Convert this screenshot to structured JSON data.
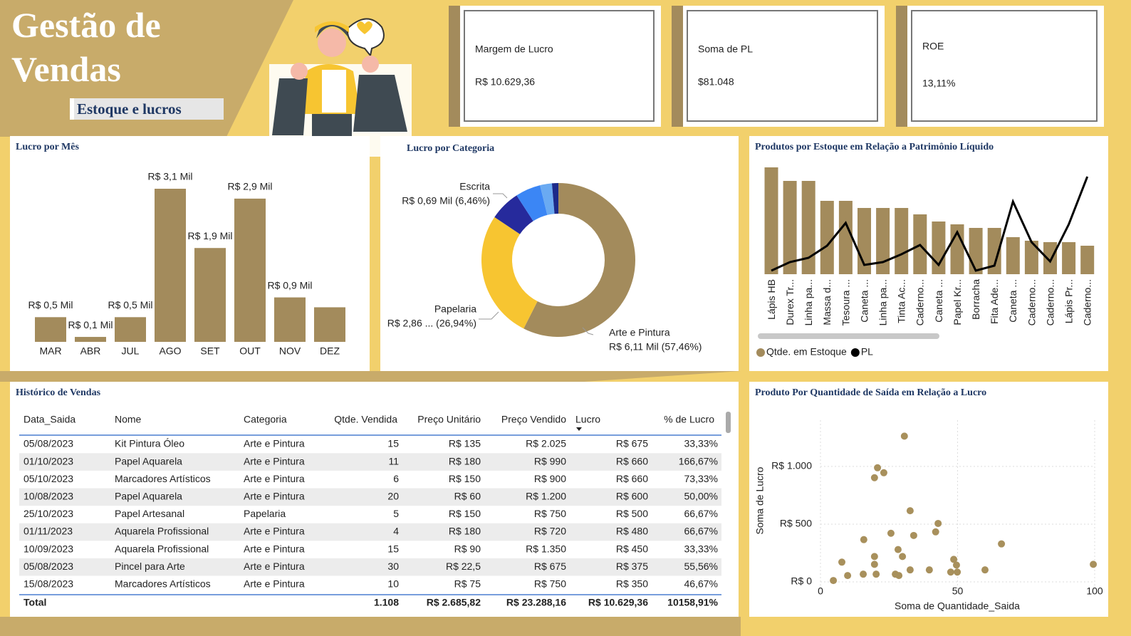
{
  "header": {
    "title": "Gestão de Vendas",
    "subtitle": "Estoque e lucros"
  },
  "kpis": [
    {
      "label": "Margem de Lucro",
      "value": "R$ 10.629,36"
    },
    {
      "label": "Soma de PL",
      "value": "$81.048"
    },
    {
      "label": "ROE",
      "value": "13,11%"
    }
  ],
  "chart_data": [
    {
      "type": "bar",
      "title": "Lucro por Mês",
      "categories": [
        "MAR",
        "ABR",
        "JUL",
        "AGO",
        "SET",
        "OUT",
        "NOV",
        "DEZ"
      ],
      "values": [
        0.5,
        0.1,
        0.5,
        3.1,
        1.9,
        2.9,
        0.9,
        0.7
      ],
      "value_labels": [
        "R$ 0,5 Mil",
        "R$ 0,1 Mil",
        "R$ 0,5 Mil",
        "R$ 3,1 Mil",
        "R$ 1,9 Mil",
        "R$ 2,9 Mil",
        "R$ 0,9 Mil",
        null
      ],
      "color": "#a38b5c"
    },
    {
      "type": "donut",
      "title": "Lucro por Categoria",
      "categories": [
        "Arte e Pintura",
        "Papelaria",
        "Escrita",
        null,
        null,
        null
      ],
      "values": [
        57.46,
        26.94,
        6.46,
        5.3,
        2.5,
        1.34
      ],
      "value_labels": [
        "R$ 6,11 Mil (57,46%)",
        "R$ 2,86 ... (26,94%)",
        "R$ 0,69 Mil (6,46%)",
        null,
        null,
        null
      ],
      "colors": [
        "#a38b5c",
        "#f7c531",
        "#262a9c",
        "#3b86f5",
        "#6aaaf2",
        "#1c2a8a"
      ]
    },
    {
      "type": "combo",
      "title": "Produtos por Estoque em Relação a Patrimônio Líquido",
      "categories": [
        "Lápis HB",
        "Durex Tr...",
        "Linha pa...",
        "Massa d...",
        "Tesoura ...",
        "Caneta ...",
        "Linha pa...",
        "Tinta Ac...",
        "Caderno...",
        "Caneta ...",
        "Papel Kr...",
        "Borracha",
        "Fita Ade...",
        "Caneta ...",
        "Caderno...",
        "Caderno...",
        "Lápis Pr...",
        "Caderno..."
      ],
      "series": [
        {
          "name": "Qtde. em Estoque",
          "color": "#a38b5c",
          "values": [
            150,
            131,
            131,
            103,
            103,
            93,
            93,
            93,
            84,
            74,
            70,
            65,
            65,
            52,
            47,
            45,
            45,
            40
          ]
        },
        {
          "name": "PL",
          "color": "#000000",
          "axis": "y2",
          "values": [
            5,
            17,
            23,
            40,
            72,
            13,
            17,
            28,
            41,
            13,
            59,
            5,
            12,
            102,
            45,
            18,
            70,
            137
          ]
        }
      ]
    },
    {
      "type": "scatter",
      "title": "Produto Por Quantidade de Saída em Relação a Lucro",
      "x_label": "Soma de Quantidade_Saida",
      "y_label": "Soma de Lucro",
      "color": "#a8905c",
      "x": [
        30.6,
        20.8,
        23.1,
        19.7,
        32.7,
        42.9,
        34,
        25.7,
        42,
        15.8,
        28.3,
        66,
        7.8,
        19.7,
        19.7,
        29.9,
        48.6,
        49.6,
        99.5,
        15.6,
        9.9,
        4.7,
        20.3,
        27.3,
        32.7,
        39.7,
        47.5,
        49.9,
        60,
        28.6
      ],
      "values": [
        1262,
        988,
        945,
        902,
        616,
        506,
        402,
        421,
        433,
        366,
        280,
        329,
        171,
        220,
        152,
        220,
        195,
        146,
        152,
        67,
        55,
        12,
        67,
        67,
        104,
        104,
        85,
        85,
        104,
        55
      ],
      "xlim": [
        0,
        100
      ],
      "xticks": [
        0,
        50,
        100
      ],
      "ylim": [
        -80,
        1400
      ],
      "yticks": [
        {
          "value": 0,
          "label": "R$ 0"
        },
        {
          "value": 500,
          "label": "R$ 500"
        },
        {
          "value": 1000,
          "label": "R$ 1.000"
        }
      ],
      "grid": true
    }
  ],
  "table": {
    "title": "Histórico de Vendas",
    "columns": [
      "Data_Saida",
      "Nome",
      "Categoria",
      "Qtde. Vendida",
      "Preço Unitário",
      "Preço Vendido",
      "Lucro",
      "% de Lucro"
    ],
    "rows": [
      [
        "05/08/2023",
        "Kit Pintura Óleo",
        "Arte e Pintura",
        "15",
        "R$ 135",
        "R$ 2.025",
        "R$ 675",
        "33,33%"
      ],
      [
        "01/10/2023",
        "Papel Aquarela",
        "Arte e Pintura",
        "11",
        "R$ 180",
        "R$ 990",
        "R$ 660",
        "166,67%"
      ],
      [
        "05/10/2023",
        "Marcadores Artísticos",
        "Arte e Pintura",
        "6",
        "R$ 150",
        "R$ 900",
        "R$ 660",
        "73,33%"
      ],
      [
        "10/08/2023",
        "Papel Aquarela",
        "Arte e Pintura",
        "20",
        "R$ 60",
        "R$ 1.200",
        "R$ 600",
        "50,00%"
      ],
      [
        "25/10/2023",
        "Papel Artesanal",
        "Papelaria",
        "5",
        "R$ 150",
        "R$ 750",
        "R$ 500",
        "66,67%"
      ],
      [
        "01/11/2023",
        "Aquarela Profissional",
        "Arte e Pintura",
        "4",
        "R$ 180",
        "R$ 720",
        "R$ 480",
        "66,67%"
      ],
      [
        "10/09/2023",
        "Aquarela Profissional",
        "Arte e Pintura",
        "15",
        "R$ 90",
        "R$ 1.350",
        "R$ 450",
        "33,33%"
      ],
      [
        "05/08/2023",
        "Pincel para Arte",
        "Arte e Pintura",
        "30",
        "R$ 22,5",
        "R$ 675",
        "R$ 375",
        "55,56%"
      ],
      [
        "15/08/2023",
        "Marcadores Artísticos",
        "Arte e Pintura",
        "10",
        "R$ 75",
        "R$ 750",
        "R$ 350",
        "46,67%"
      ]
    ],
    "total": [
      "Total",
      null,
      null,
      "1.108",
      "R$ 2.685,82",
      "R$ 23.288,16",
      "R$ 10.629,36",
      "10158,91%"
    ]
  }
}
